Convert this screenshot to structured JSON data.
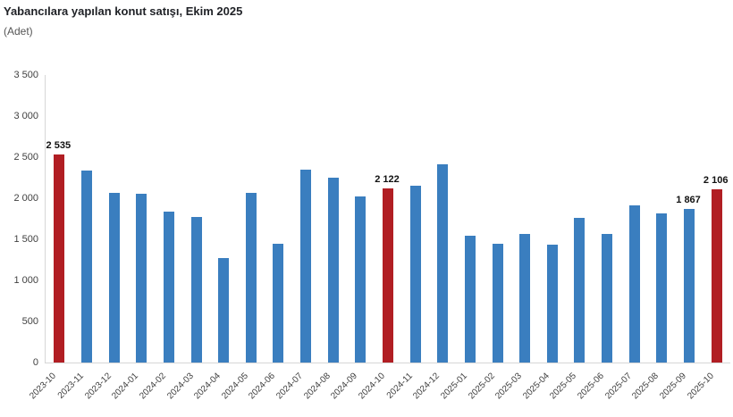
{
  "header": {
    "title": "Yabancılara yapılan konut satışı, Ekim 2025",
    "subtitle": "(Adet)"
  },
  "colors": {
    "bar_blue": "#3A7EBF",
    "bar_red": "#B11E23",
    "axis_line": "#D6D6D6",
    "tick_text": "#404040",
    "title_text": "#1F2126",
    "subtitle_text": "#555555",
    "data_label_text": "#111111"
  },
  "chart_data": {
    "type": "bar",
    "title": "Yabancılara yapılan konut satışı, Ekim 2025",
    "unit_label": "(Adet)",
    "xlabel": "",
    "ylabel": "",
    "grid": false,
    "legend": false,
    "ylim": [
      0,
      3500
    ],
    "ytick_step": 500,
    "ytick_labels": [
      "0",
      "500",
      "1 000",
      "1 500",
      "2 000",
      "2 500",
      "3 000",
      "3 500"
    ],
    "categories": [
      "2023-10",
      "2023-11",
      "2023-12",
      "2024-01",
      "2024-02",
      "2024-03",
      "2024-04",
      "2024-05",
      "2024-06",
      "2024-07",
      "2024-08",
      "2024-09",
      "2024-10",
      "2024-11",
      "2024-12",
      "2025-01",
      "2025-02",
      "2025-03",
      "2025-04",
      "2025-05",
      "2025-06",
      "2025-07",
      "2025-08",
      "2025-09",
      "2025-10"
    ],
    "values": [
      2535,
      2341,
      2064,
      2057,
      1841,
      1771,
      1267,
      2060,
      1441,
      2347,
      2254,
      2021,
      2122,
      2147,
      2412,
      1540,
      1449,
      1568,
      1439,
      1765,
      1562,
      1911,
      1810,
      1867,
      2106
    ],
    "highlighted_indices": [
      0,
      12,
      24
    ],
    "data_labels": {
      "0": "2 535",
      "12": "2 122",
      "23": "1 867",
      "24": "2 106"
    }
  }
}
